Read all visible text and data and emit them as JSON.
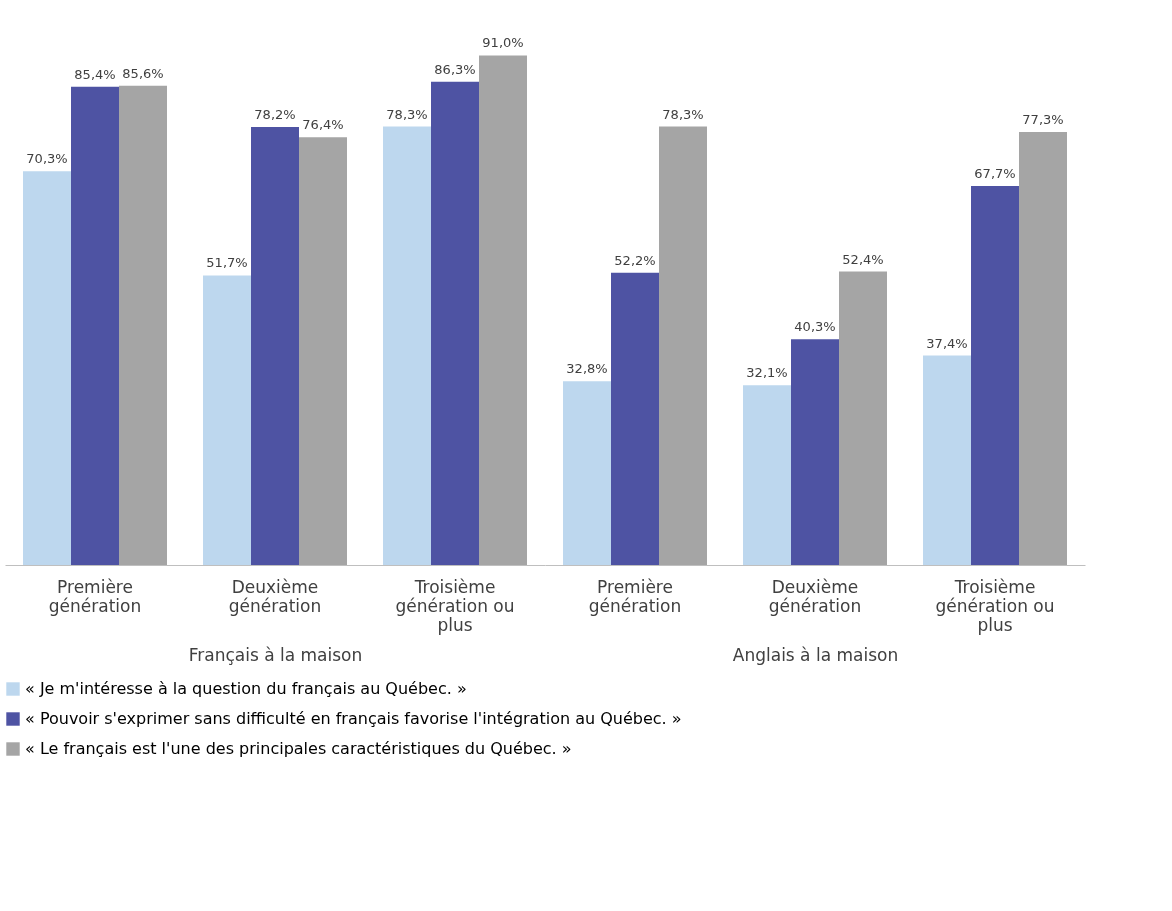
{
  "chart_data": {
    "type": "bar",
    "categories": [
      "Première génération",
      "Deuxième génération",
      "Troisième génération ou plus",
      "Première génération",
      "Deuxième génération",
      "Troisième génération ou plus"
    ],
    "annotations": [
      "Français à la maison",
      "Anglais à la maison"
    ],
    "series": [
      {
        "name": "« Je m'intéresse à la question du français au Québec. »",
        "color": "#bdd7ee",
        "values": [
          70.3,
          51.7,
          78.3,
          32.8,
          32.1,
          37.4
        ],
        "value_labels": [
          "70,3%",
          "51,7%",
          "78,3%",
          "32,8%",
          "32,1%",
          "37,4%"
        ]
      },
      {
        "name": "« Pouvoir s'exprimer sans difficulté en français favorise l'intégration au Québec. »",
        "color": "#4e53a3",
        "values": [
          85.4,
          78.2,
          86.3,
          52.2,
          40.3,
          67.7
        ],
        "value_labels": [
          "85,4%",
          "78,2%",
          "86,3%",
          "52,2%",
          "40,3%",
          "67,7%"
        ]
      },
      {
        "name": "« Le français est l'une des principales caractéristiques du Québec. »",
        "color": "#a5a5a5",
        "values": [
          85.6,
          76.4,
          91.0,
          78.3,
          52.4,
          77.3
        ],
        "value_labels": [
          "85,6%",
          "76,4%",
          "91,0%",
          "78,3%",
          "52,4%",
          "77,3%"
        ]
      }
    ],
    "legend": "bottom",
    "grid": false
  }
}
